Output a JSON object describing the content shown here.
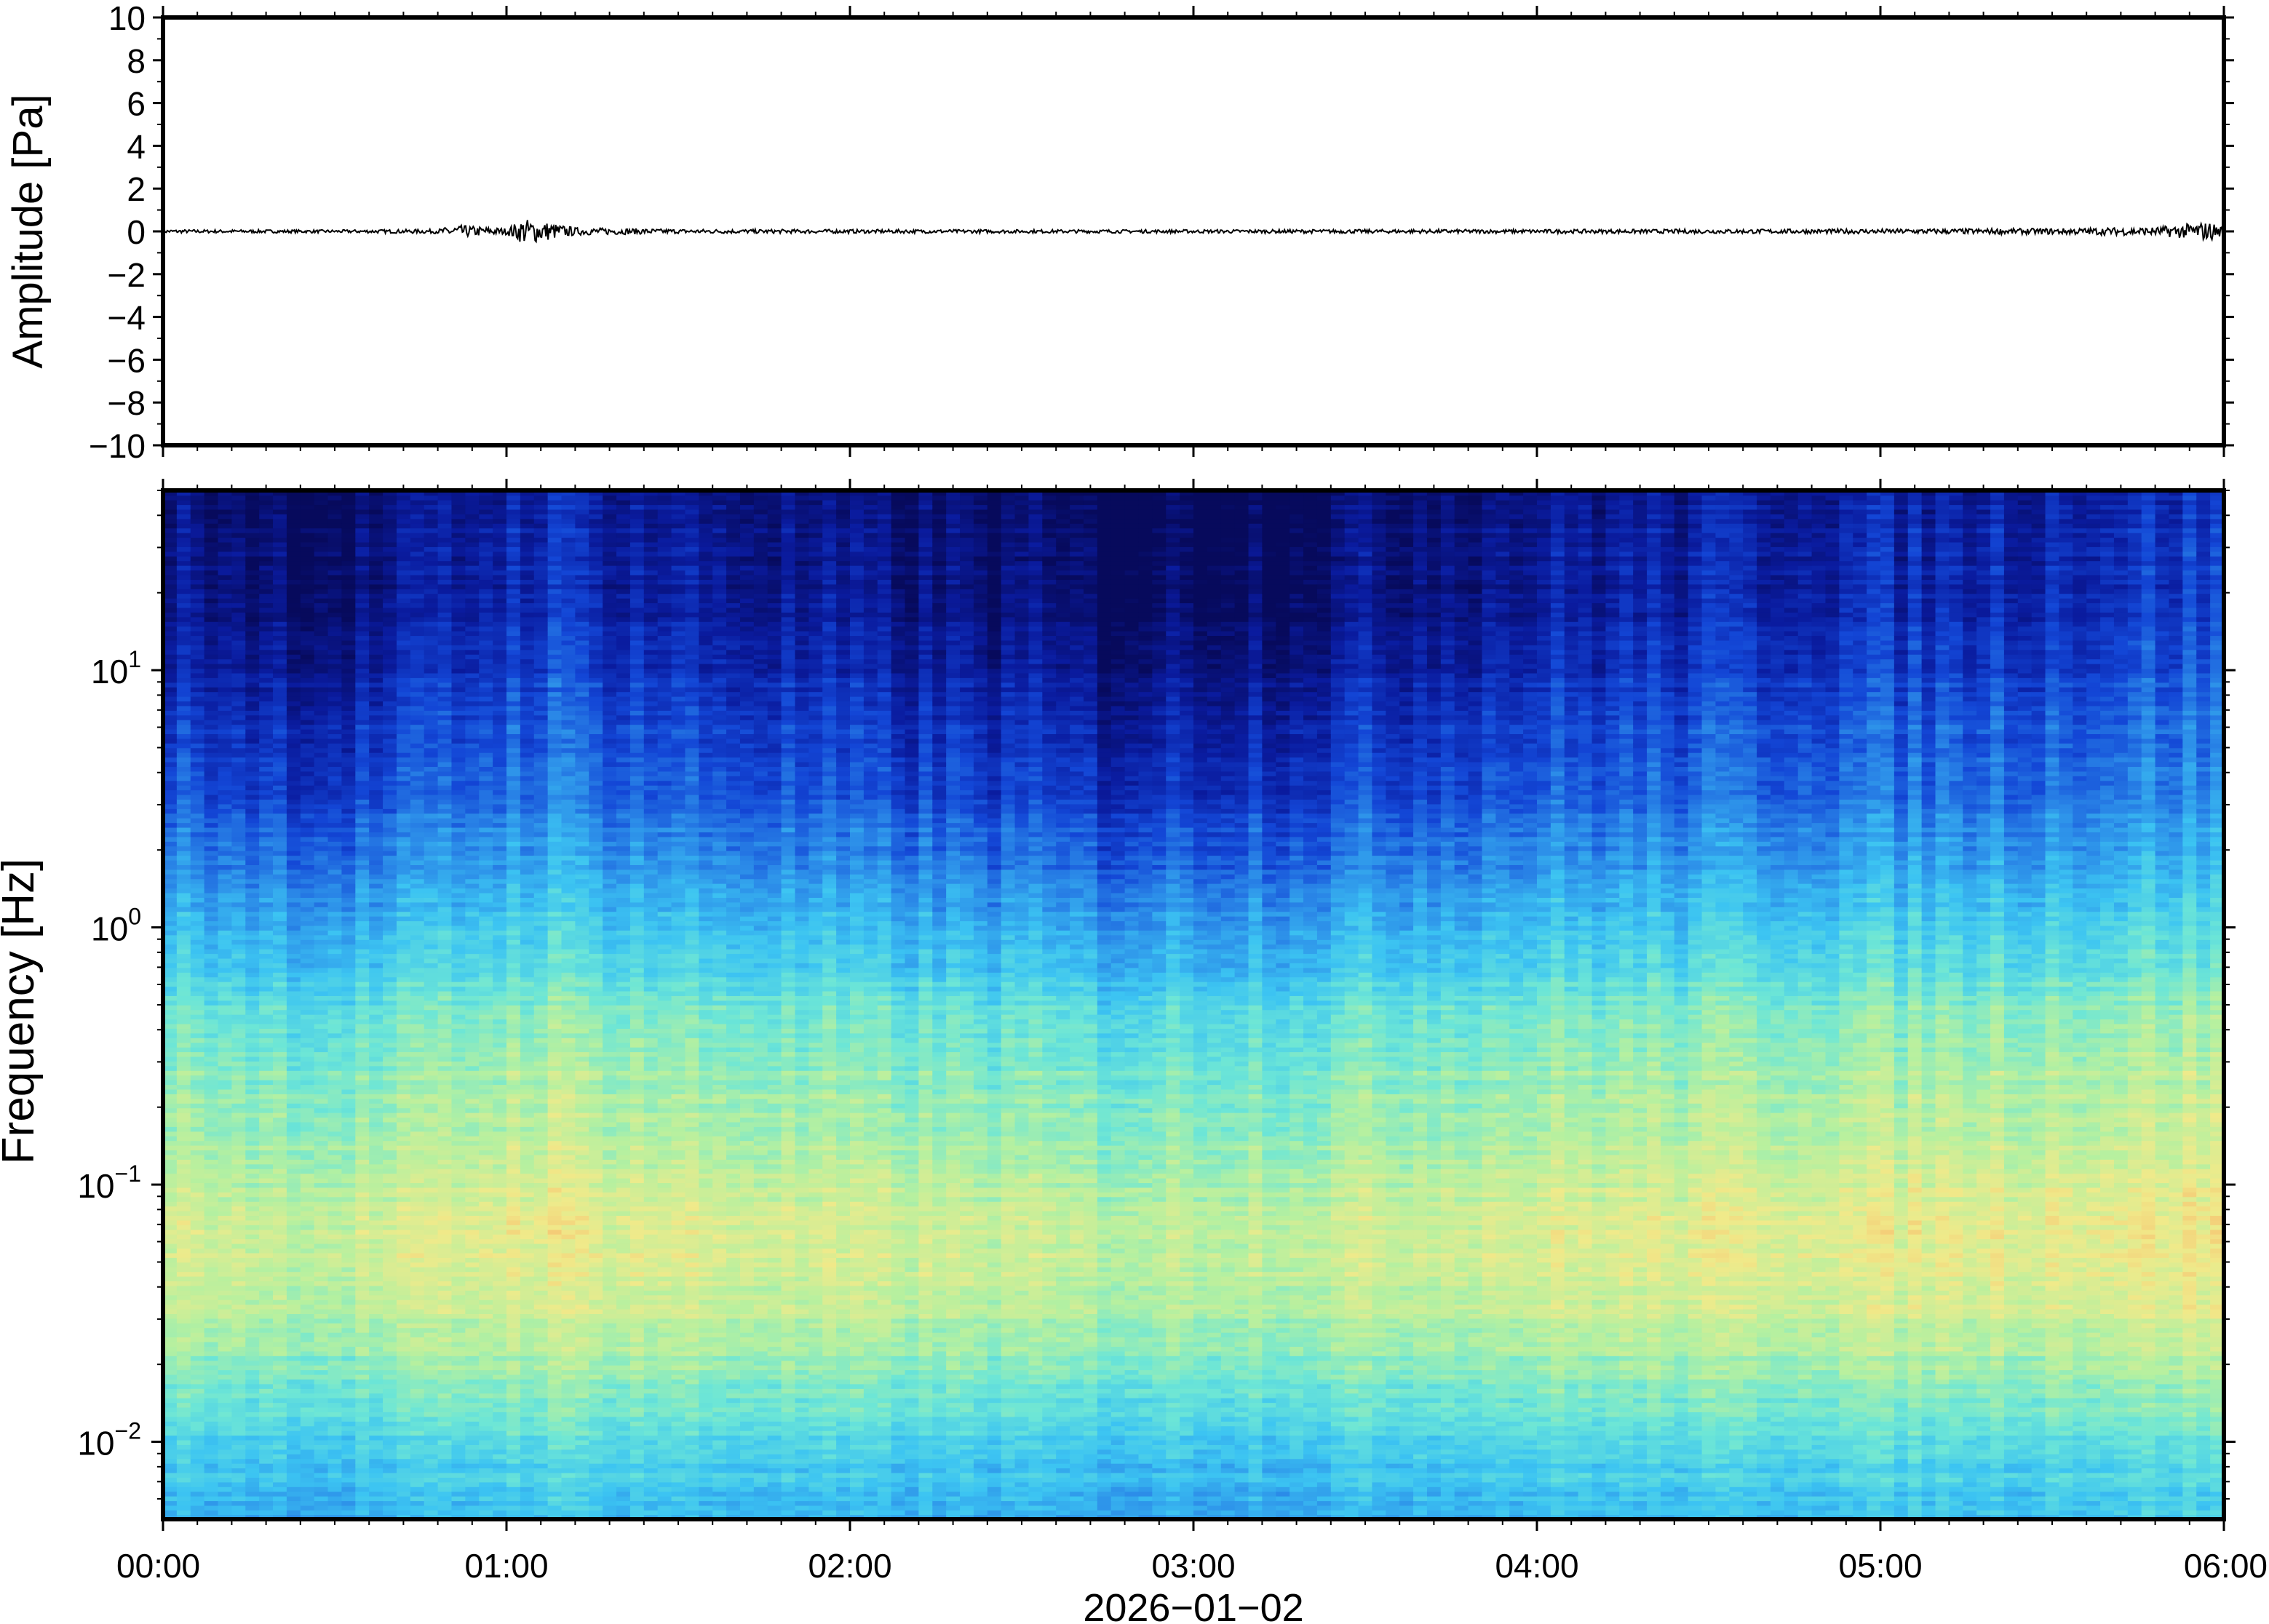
{
  "chart_data": [
    {
      "type": "line",
      "panel": "waveform",
      "ylabel": "Amplitude [Pa]",
      "ylim": [
        -10,
        10
      ],
      "yticks": [
        10,
        8,
        6,
        4,
        2,
        0,
        -2,
        -4,
        -6,
        -8,
        -10
      ],
      "ytick_labels": [
        "10",
        "8",
        "6",
        "4",
        "2",
        "0",
        "−2",
        "−4",
        "−6",
        "−8",
        "−10"
      ],
      "x_range_hours": [
        0,
        6
      ],
      "series": [
        {
          "line_color": "#000000",
          "baseline": 0,
          "envelope_x_hours": [
            0.0,
            0.5,
            0.8,
            0.85,
            1.0,
            1.05,
            1.1,
            1.2,
            1.5,
            2.0,
            2.5,
            3.0,
            3.5,
            4.0,
            4.5,
            5.0,
            5.5,
            5.8,
            5.95,
            6.0
          ],
          "envelope_amplitude": [
            0.08,
            0.07,
            0.1,
            0.3,
            0.15,
            0.6,
            0.5,
            0.18,
            0.1,
            0.09,
            0.08,
            0.08,
            0.09,
            0.09,
            0.1,
            0.11,
            0.14,
            0.2,
            0.45,
            0.3
          ]
        }
      ],
      "grid": false
    },
    {
      "type": "heatmap",
      "panel": "spectrogram",
      "ylabel": "Frequency [Hz]",
      "yscale": "log",
      "ylim": [
        0.005,
        50
      ],
      "yticks": [
        0.01,
        0.1,
        1,
        10
      ],
      "ytick_labels": [
        {
          "base": "10",
          "exp": "−2"
        },
        {
          "base": "10",
          "exp": "−1"
        },
        {
          "base": "10",
          "exp": "0"
        },
        {
          "base": "10",
          "exp": "1"
        }
      ],
      "xlabel": "2026−01−02",
      "x_range_hours": [
        0,
        6
      ],
      "xticks_hours": [
        0,
        1,
        2,
        3,
        4,
        5,
        6
      ],
      "xtick_labels": [
        "00:00",
        "01:00",
        "02:00",
        "03:00",
        "04:00",
        "05:00",
        "06:00"
      ],
      "colormap": [
        "#070a5c",
        "#0a1b9e",
        "#1346d6",
        "#2b8ae8",
        "#3cc4f2",
        "#6de6d6",
        "#b5f0a0",
        "#f0ea8a",
        "#f7b86a",
        "#f08850"
      ],
      "colormap_range": [
        0,
        1
      ],
      "profile_log10_freq": [
        -2.3,
        -2.0,
        -1.6,
        -1.3,
        -1.0,
        -0.6,
        -0.3,
        0.0,
        0.3,
        0.6,
        1.0,
        1.3,
        1.5,
        1.7
      ],
      "profile_intensity": [
        0.42,
        0.5,
        0.66,
        0.74,
        0.7,
        0.63,
        0.56,
        0.44,
        0.33,
        0.24,
        0.16,
        0.1,
        0.09,
        0.08
      ],
      "column_time_hours": [
        0.0,
        0.5,
        0.7,
        1.0,
        1.1,
        1.3,
        1.6,
        2.0,
        2.5,
        2.75,
        3.0,
        3.3,
        3.6,
        4.0,
        4.5,
        4.8,
        5.2,
        5.6,
        5.9,
        6.0
      ],
      "column_offset": [
        0.0,
        -0.07,
        -0.02,
        0.05,
        0.08,
        0.04,
        0.0,
        -0.03,
        -0.06,
        -0.1,
        -0.07,
        -0.06,
        -0.02,
        0.01,
        0.03,
        0.05,
        0.05,
        0.07,
        0.1,
        0.09
      ],
      "column_count": 150,
      "row_count": 220
    }
  ]
}
